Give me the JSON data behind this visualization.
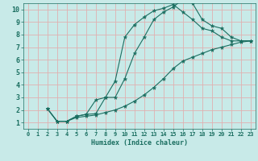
{
  "xlabel": "Humidex (Indice chaleur)",
  "background_color": "#c8eae8",
  "grid_color": "#e0b0b0",
  "line_color": "#1a6e60",
  "xlim": [
    -0.5,
    23.5
  ],
  "ylim": [
    0.5,
    10.5
  ],
  "xticks": [
    0,
    1,
    2,
    3,
    4,
    5,
    6,
    7,
    8,
    9,
    10,
    11,
    12,
    13,
    14,
    15,
    16,
    17,
    18,
    19,
    20,
    21,
    22,
    23
  ],
  "yticks": [
    1,
    2,
    3,
    4,
    5,
    6,
    7,
    8,
    9,
    10
  ],
  "series": [
    {
      "x": [
        2,
        3,
        4,
        5,
        6,
        7,
        8,
        9,
        10,
        11,
        12,
        13,
        14,
        15,
        16,
        17,
        18,
        19,
        20,
        21,
        22,
        23
      ],
      "y": [
        2.1,
        1.1,
        1.1,
        1.5,
        1.65,
        1.7,
        3.0,
        4.3,
        7.8,
        8.8,
        9.4,
        9.9,
        10.1,
        10.4,
        9.8,
        9.2,
        8.5,
        8.3,
        7.8,
        7.5,
        7.5,
        7.5
      ]
    },
    {
      "x": [
        2,
        3,
        4,
        5,
        6,
        7,
        8,
        9,
        10,
        11,
        12,
        13,
        14,
        15,
        16,
        17,
        18,
        19,
        20,
        21,
        22,
        23
      ],
      "y": [
        2.1,
        1.1,
        1.1,
        1.5,
        1.65,
        2.8,
        3.0,
        3.0,
        4.5,
        6.5,
        7.8,
        9.2,
        9.8,
        10.2,
        10.8,
        10.5,
        9.2,
        8.7,
        8.5,
        7.8,
        7.5,
        7.5
      ]
    },
    {
      "x": [
        2,
        3,
        4,
        5,
        6,
        7,
        8,
        9,
        10,
        11,
        12,
        13,
        14,
        15,
        16,
        17,
        18,
        19,
        20,
        21,
        22,
        23
      ],
      "y": [
        2.1,
        1.1,
        1.1,
        1.4,
        1.5,
        1.6,
        1.8,
        2.0,
        2.3,
        2.7,
        3.2,
        3.8,
        4.5,
        5.3,
        5.9,
        6.2,
        6.5,
        6.8,
        7.0,
        7.2,
        7.4,
        7.5
      ]
    }
  ]
}
